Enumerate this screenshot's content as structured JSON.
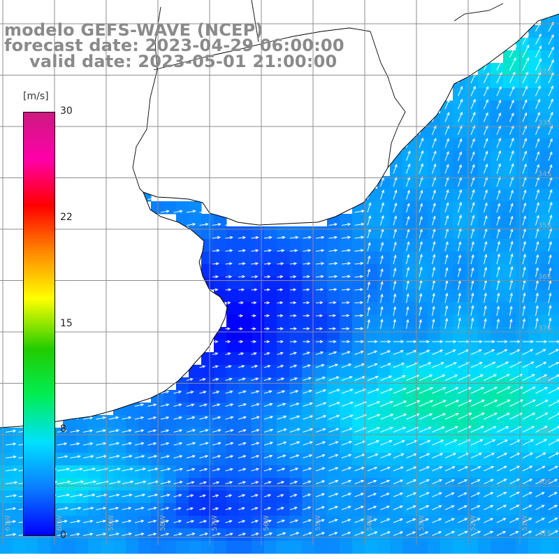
{
  "titles": {
    "model": "modelo GEFS-WAVE (NCEP)",
    "forecast": "forecast date: 2023-04-29 06:00:00",
    "valid": "valid date: 2023-05-01 21:00:00"
  },
  "colorbar": {
    "unit": "[m/s]",
    "ticks": [
      "30",
      "22",
      "15",
      "8",
      "0"
    ],
    "colors": [
      "#0000ff",
      "#0a7bff",
      "#00e0ff",
      "#00ee55",
      "#22cc00",
      "#ffff00",
      "#ff8800",
      "#ff0000",
      "#ff00aa",
      "#cc1a7f"
    ]
  },
  "map": {
    "land_color": "#ffffff",
    "grid_color": "#8c8c8c",
    "coast_color": "#000000",
    "arrow_color": "#ffffff",
    "lat_labels": [
      "32S",
      "33S",
      "34S",
      "35S",
      "36S",
      "37S",
      "38S",
      "39S",
      "40S",
      "41S"
    ],
    "lon_labels": [
      "61W",
      "60W",
      "59W",
      "58W",
      "57W",
      "56W",
      "55W",
      "54W",
      "53W",
      "52W",
      "51W"
    ]
  }
}
